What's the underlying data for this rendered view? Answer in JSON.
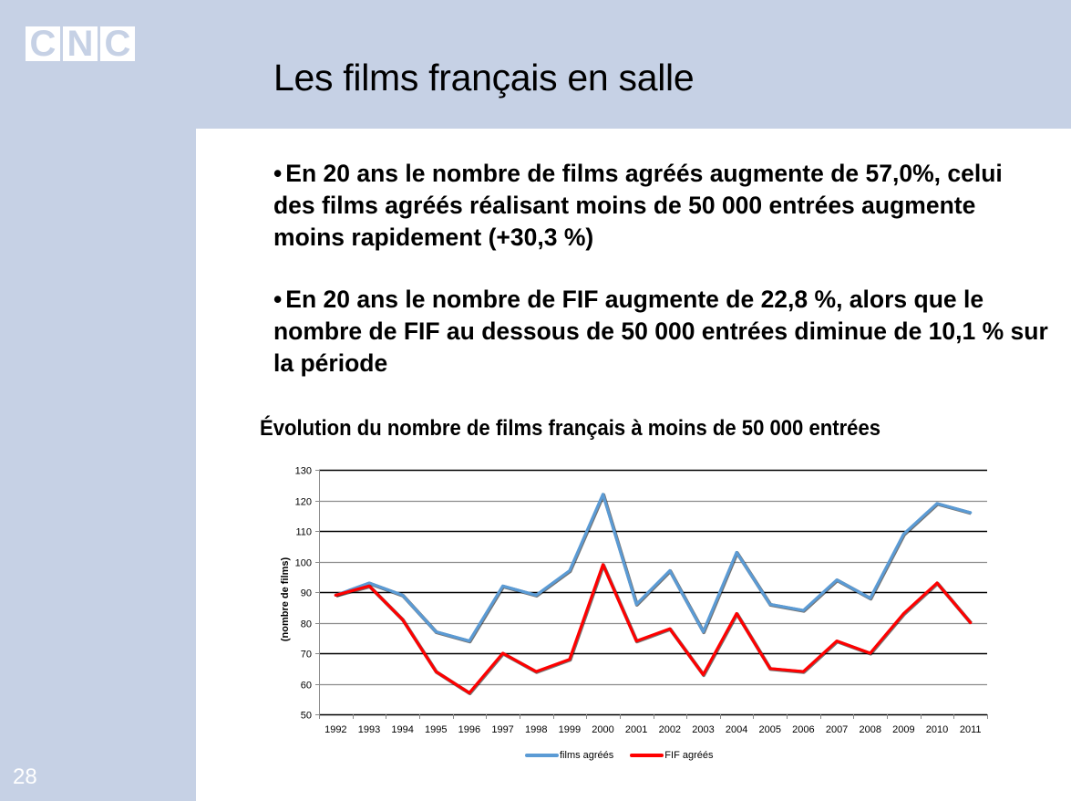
{
  "slide": {
    "title": "Les films français en salle",
    "page_number": "28",
    "logo": {
      "letters": [
        "C",
        "N",
        "C"
      ],
      "icon": "cnc-logo"
    },
    "bullets": [
      {
        "bullet": "•",
        "text": "En 20 ans le nombre de films agréés augmente de 57,0%, celui des films agréés réalisant moins de 50 000 entrées augmente moins rapidement (+30,3 %)"
      },
      {
        "bullet": "•",
        "text": "En 20 ans le nombre de FIF augmente de 22,8 %, alors que le nombre de FIF au dessous de 50 000 entrées diminue de 10,1 % sur la période"
      }
    ],
    "colors": {
      "band": "#c6d1e5",
      "films_agrees": "#5b9bd5",
      "fif_agrees": "#ff0000"
    }
  },
  "chart_data": {
    "type": "line",
    "title": "Évolution du nombre de films français à moins de 50 000 entrées",
    "xlabel": "",
    "ylabel": "(nombre de films)",
    "x": [
      "1992",
      "1993",
      "1994",
      "1995",
      "1996",
      "1997",
      "1998",
      "1999",
      "2000",
      "2001",
      "2002",
      "2003",
      "2004",
      "2005",
      "2006",
      "2007",
      "2008",
      "2009",
      "2010",
      "2011"
    ],
    "ylim": [
      50,
      130
    ],
    "yticks": [
      50,
      60,
      70,
      80,
      90,
      100,
      110,
      120,
      130
    ],
    "grid": true,
    "legend_position": "bottom",
    "series": [
      {
        "name": "films agréés",
        "color": "#5b9bd5",
        "values": [
          89,
          93,
          89,
          77,
          74,
          92,
          89,
          97,
          122,
          86,
          97,
          77,
          103,
          86,
          84,
          94,
          88,
          109,
          119,
          116
        ]
      },
      {
        "name": "FIF agréés",
        "color": "#ff0000",
        "values": [
          89,
          92,
          81,
          64,
          57,
          70,
          64,
          68,
          99,
          74,
          78,
          63,
          83,
          65,
          64,
          74,
          70,
          83,
          93,
          80
        ]
      }
    ]
  }
}
